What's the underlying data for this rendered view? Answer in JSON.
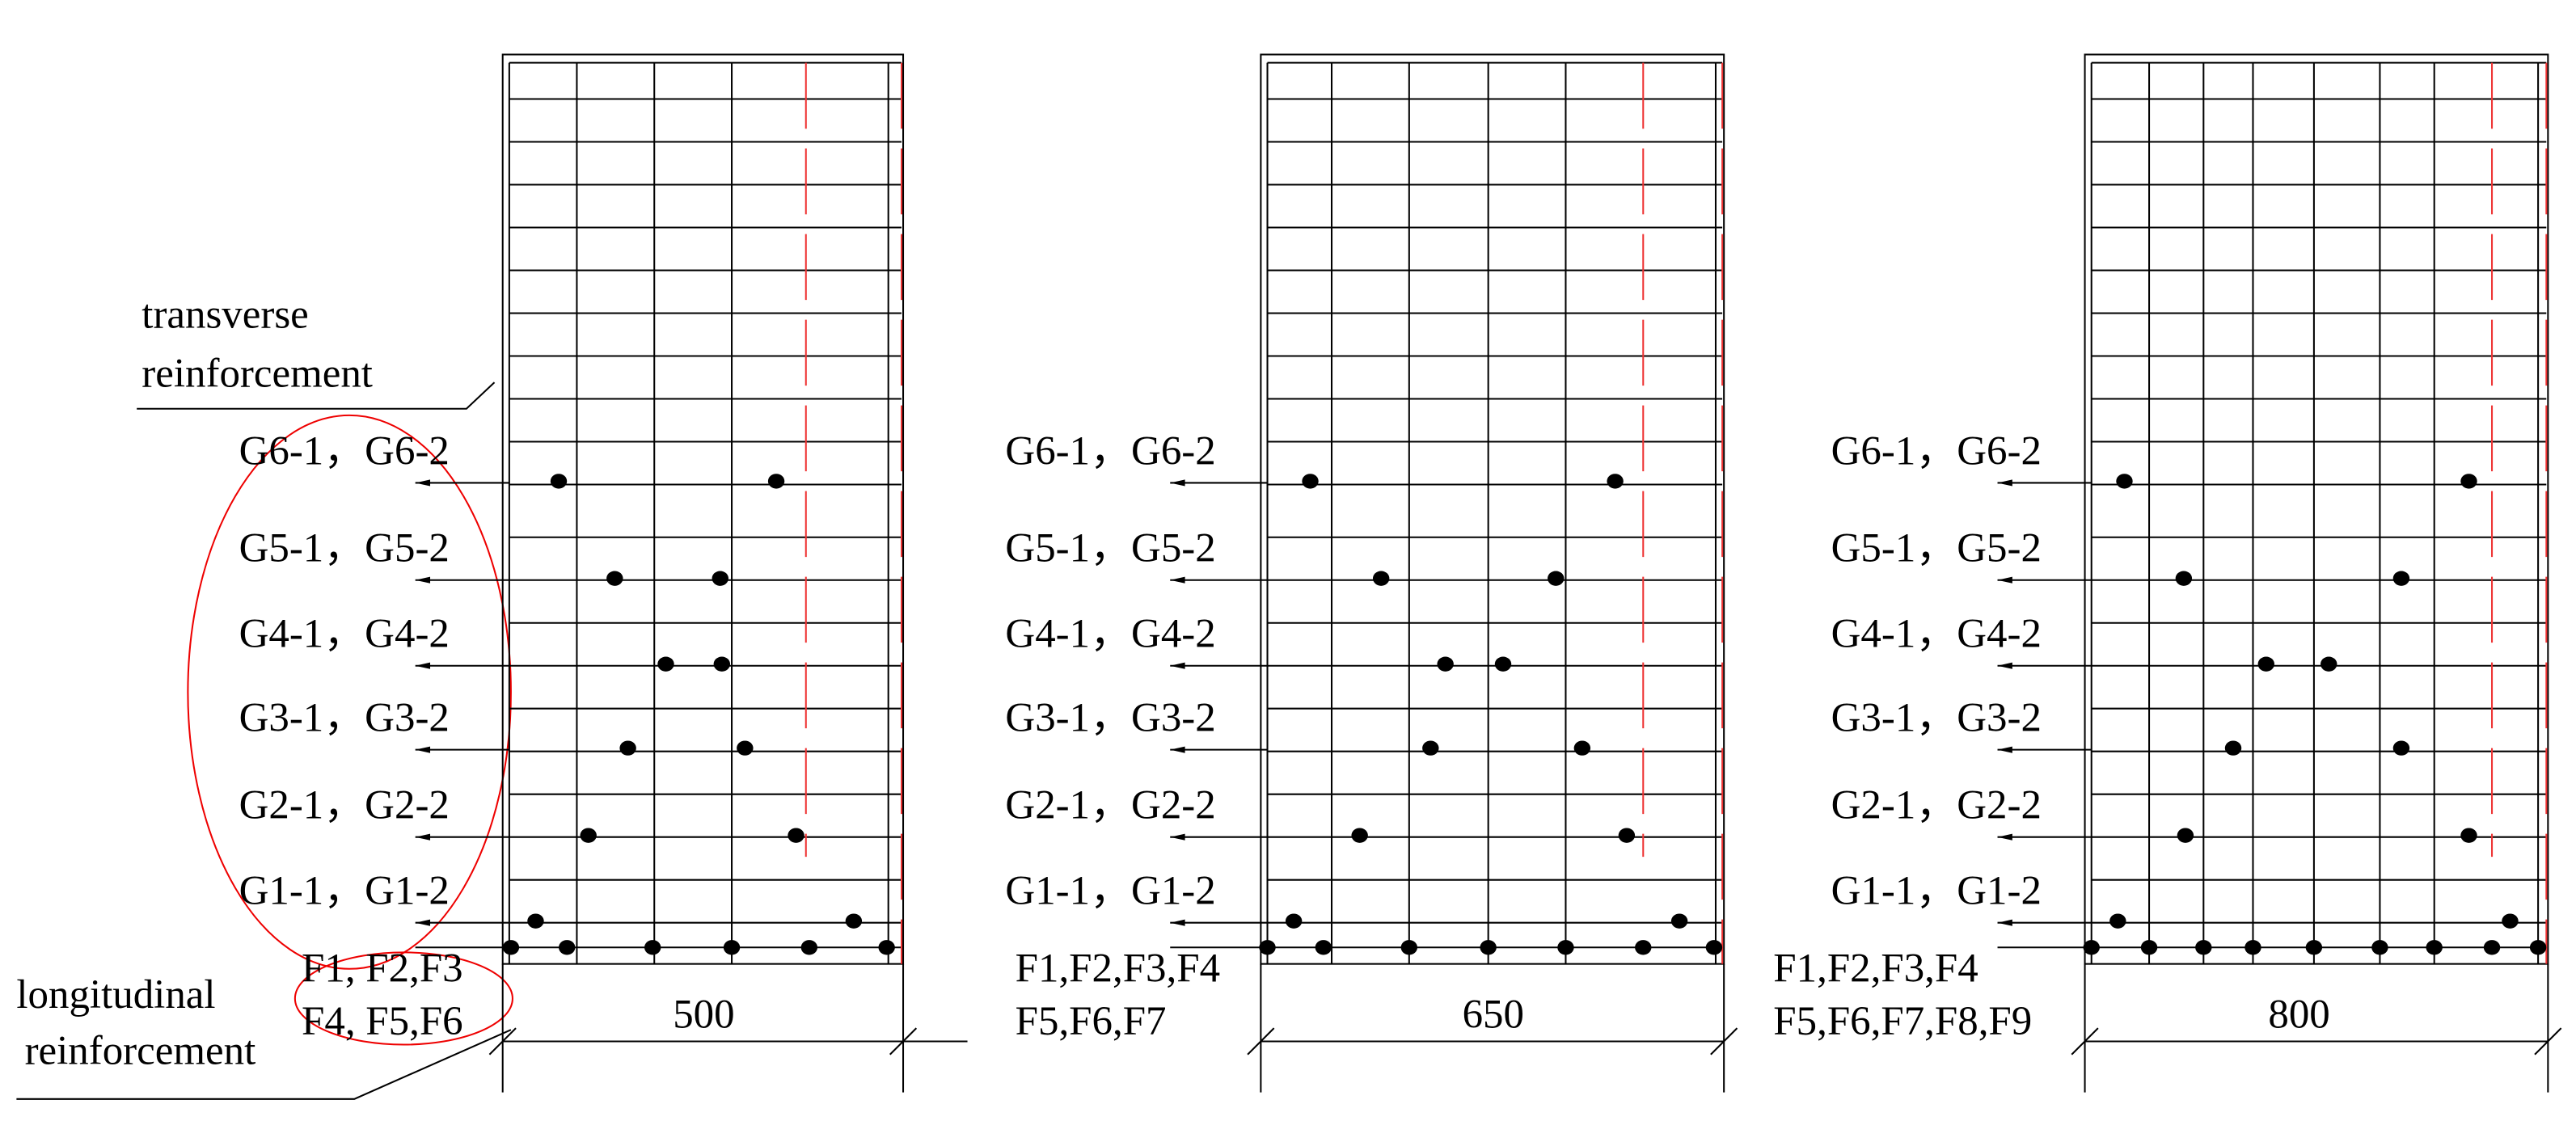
{
  "annotations": {
    "transverse": [
      "transverse",
      "reinforcement"
    ],
    "longitudinal": [
      "longitudinal",
      "reinforcement"
    ]
  },
  "panels": [
    {
      "width_label": "500",
      "g_labels": [
        "G6-1，G6-2",
        "G5-1，G5-2",
        "G4-1，G4-2",
        "G3-1，G3-2",
        "G2-1，G2-2",
        "G1-1，G1-2"
      ],
      "f_labels": [
        "F1, F2,F3",
        "F4, F5,F6"
      ]
    },
    {
      "width_label": "650",
      "g_labels": [
        "G6-1，G6-2",
        "G5-1，G5-2",
        "G4-1，G4-2",
        "G3-1，G3-2",
        "G2-1，G2-2",
        "G1-1，G1-2"
      ],
      "f_labels": [
        "F1,F2,F3,F4",
        "F5,F6,F7"
      ]
    },
    {
      "width_label": "800",
      "g_labels": [
        "G6-1，G6-2",
        "G5-1，G5-2",
        "G4-1，G4-2",
        "G3-1，G3-2",
        "G2-1，G2-2",
        "G1-1，G1-2"
      ],
      "f_labels": [
        "F1,F2,F3,F4",
        "F5,F6,F7,F8,F9"
      ]
    }
  ]
}
